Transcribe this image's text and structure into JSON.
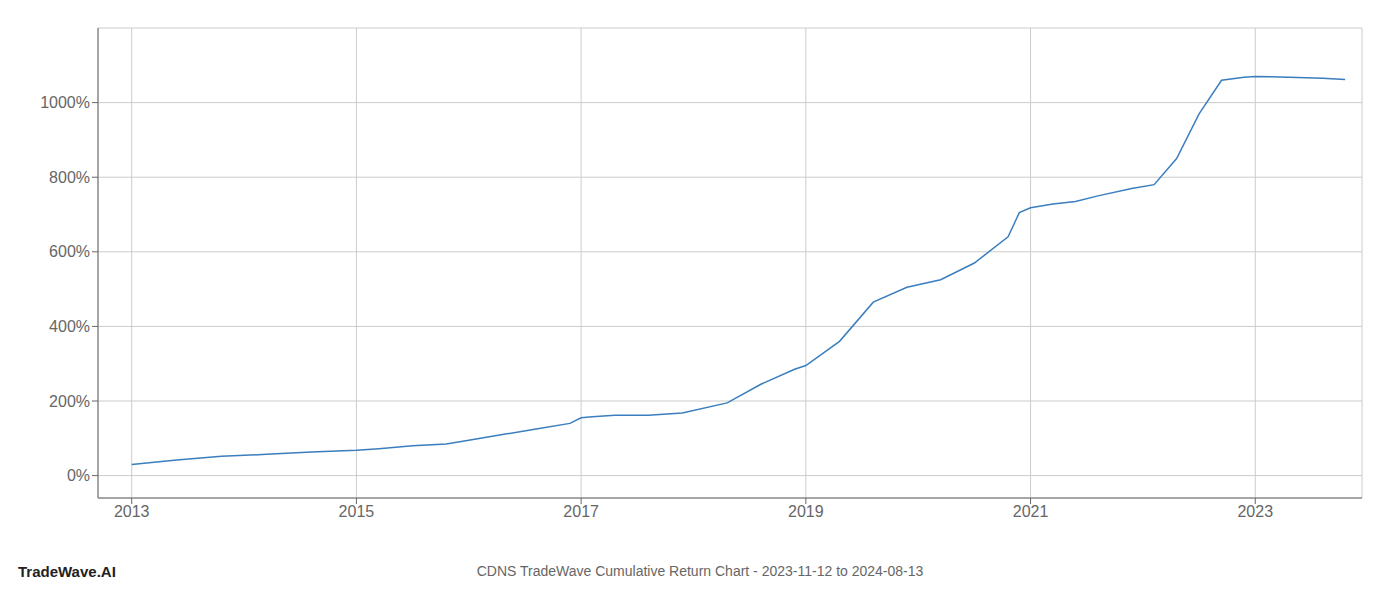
{
  "chart_data": {
    "type": "line",
    "title": "CDNS TradeWave Cumulative Return Chart - 2023-11-12 to 2024-08-13",
    "annotations": [
      "TradeWave.AI"
    ],
    "x": [
      2013.0,
      2013.4,
      2013.8,
      2014.2,
      2014.6,
      2015.0,
      2015.2,
      2015.5,
      2015.8,
      2016.0,
      2016.3,
      2016.6,
      2016.9,
      2017.0,
      2017.1,
      2017.3,
      2017.6,
      2017.9,
      2018.3,
      2018.6,
      2018.9,
      2019.0,
      2019.3,
      2019.6,
      2019.9,
      2020.2,
      2020.5,
      2020.8,
      2020.9,
      2021.0,
      2021.2,
      2021.4,
      2021.6,
      2021.9,
      2022.1,
      2022.3,
      2022.5,
      2022.7,
      2022.9,
      2023.0,
      2023.3,
      2023.6,
      2023.8
    ],
    "values": [
      30,
      42,
      52,
      57,
      63,
      68,
      72,
      80,
      85,
      95,
      110,
      125,
      140,
      155,
      158,
      162,
      162,
      168,
      195,
      245,
      285,
      295,
      360,
      465,
      505,
      525,
      570,
      640,
      705,
      718,
      728,
      735,
      750,
      770,
      780,
      850,
      970,
      1060,
      1068,
      1070,
      1068,
      1065,
      1062
    ],
    "color": "#3a7ebf",
    "xlim": [
      2012.7,
      2023.95
    ],
    "ylim": [
      -60,
      1200
    ],
    "xticks": [
      2013,
      2015,
      2017,
      2019,
      2021,
      2023
    ],
    "yticks": [
      {
        "value": 0,
        "label": "0%"
      },
      {
        "value": 200,
        "label": "200%"
      },
      {
        "value": 400,
        "label": "400%"
      },
      {
        "value": 600,
        "label": "600%"
      },
      {
        "value": 800,
        "label": "800%"
      },
      {
        "value": 1000,
        "label": "1000%"
      }
    ],
    "grid": true
  }
}
